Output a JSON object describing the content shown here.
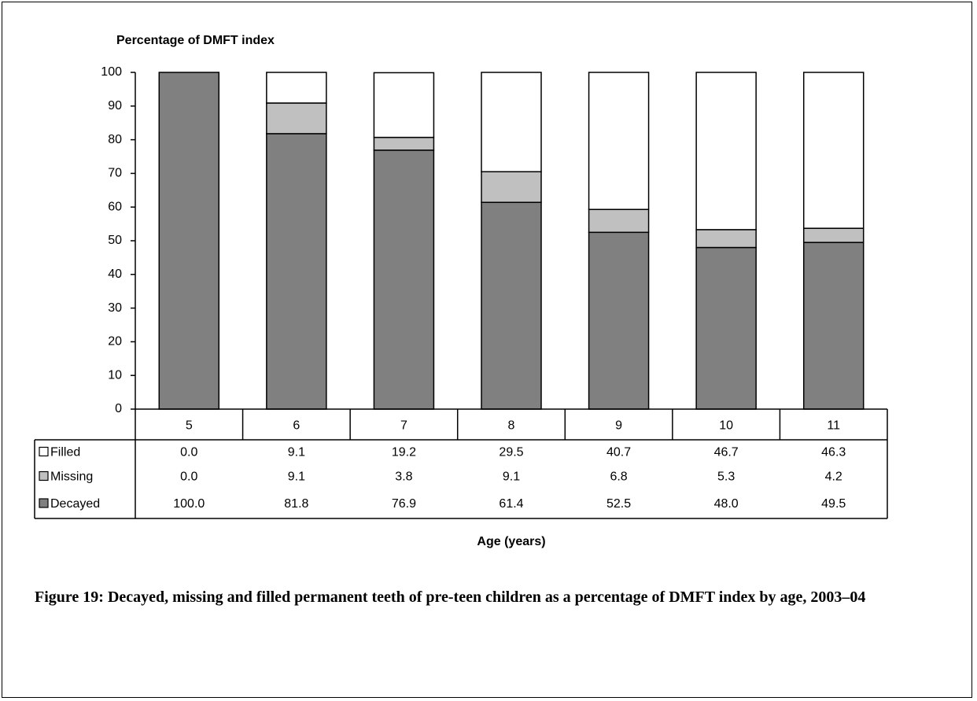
{
  "chart_data": {
    "type": "stacked-bar",
    "title": "Percentage of DMFT index",
    "x_label": "Age (years)",
    "caption": "Figure 19: Decayed, missing and filled permanent teeth of pre-teen children as a percentage of DMFT index by age, 2003–04",
    "categories": [
      "5",
      "6",
      "7",
      "8",
      "9",
      "10",
      "11"
    ],
    "series": [
      {
        "name": "Filled",
        "color": "#ffffff",
        "values": [
          0,
          9.1,
          19.2,
          29.5,
          40.7,
          46.7,
          46.3
        ],
        "value_labels": [
          "0.0",
          "9.1",
          "19.2",
          "29.5",
          "40.7",
          "46.7",
          "46.3"
        ]
      },
      {
        "name": "Missing",
        "color": "#c0c0c0",
        "values": [
          0,
          9.1,
          3.8,
          9.1,
          6.8,
          5.3,
          4.2
        ],
        "value_labels": [
          "0.0",
          "9.1",
          "3.8",
          "9.1",
          "6.8",
          "5.3",
          "4.2"
        ]
      },
      {
        "name": "Decayed",
        "color": "#808080",
        "values": [
          100,
          81.8,
          76.9,
          61.4,
          52.5,
          48,
          49.5
        ],
        "value_labels": [
          "100.0",
          "81.8",
          "76.9",
          "61.4",
          "52.5",
          "48.0",
          "49.5"
        ]
      }
    ],
    "ylim": [
      0,
      100
    ],
    "yticks": [
      0,
      10,
      20,
      30,
      40,
      50,
      60,
      70,
      80,
      90,
      100
    ],
    "grid": false
  }
}
